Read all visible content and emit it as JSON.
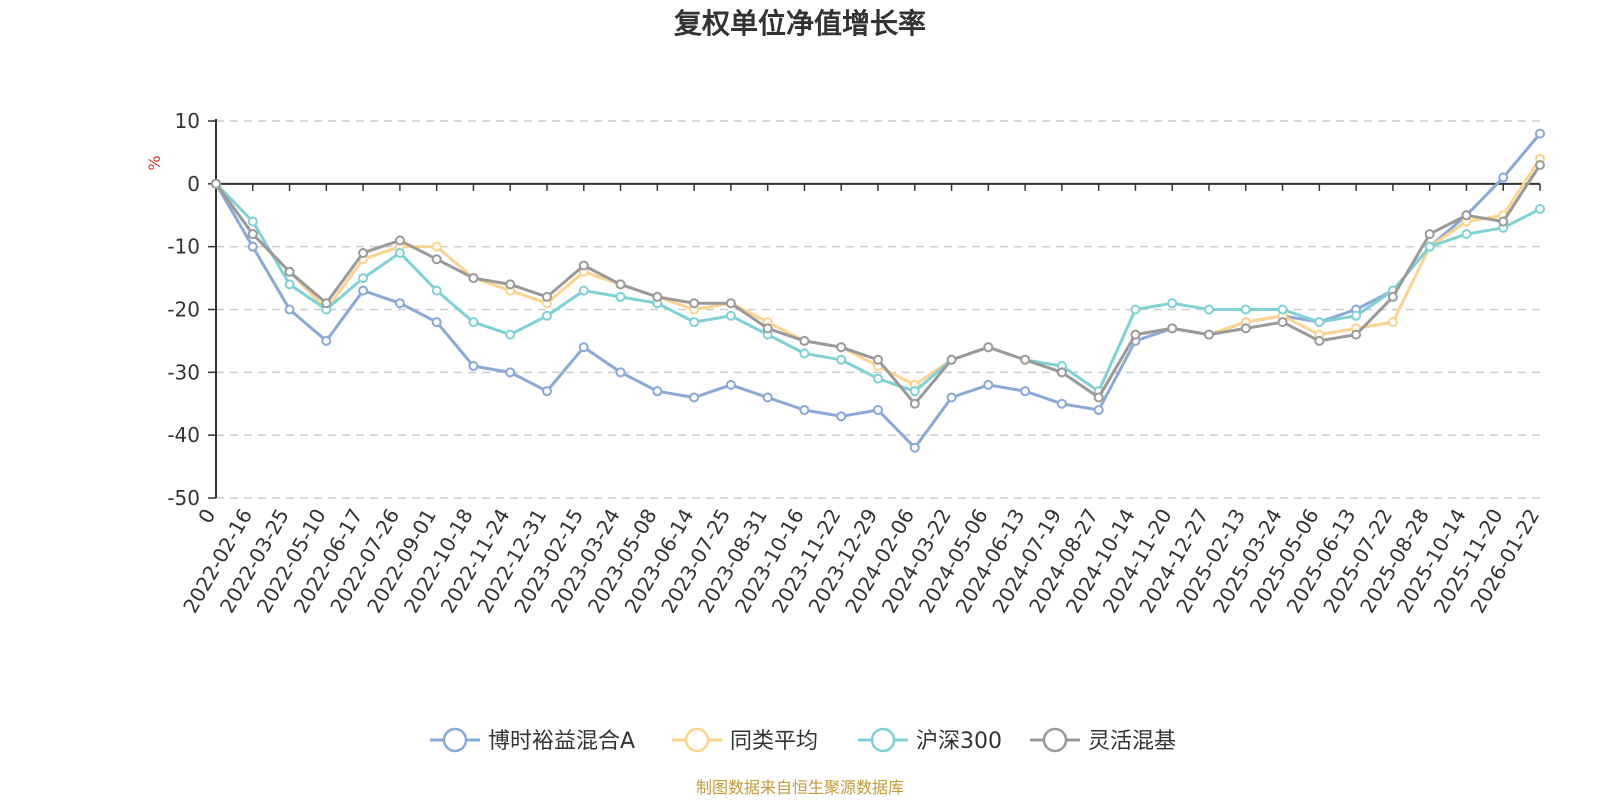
{
  "chart_data": {
    "type": "line",
    "title": "复权单位净值增长率",
    "ylabel": "%",
    "ylim": [
      -50,
      10
    ],
    "yticks": [
      10,
      0,
      -10,
      -20,
      -30,
      -40,
      -50
    ],
    "grid": true,
    "legend_position": "bottom",
    "x_tick_labels": [
      "0",
      "2022-02-16",
      "2022-03-25",
      "2022-05-10",
      "2022-06-17",
      "2022-07-26",
      "2022-09-01",
      "2022-10-18",
      "2022-11-24",
      "2022-12-31",
      "2023-02-15",
      "2023-03-24",
      "2023-05-08",
      "2023-06-14",
      "2023-07-25",
      "2023-08-31",
      "2023-10-16",
      "2023-11-22",
      "2023-12-29",
      "2024-02-06",
      "2024-03-22",
      "2024-05-06",
      "2024-06-13",
      "2024-07-19",
      "2024-08-27",
      "2024-10-14",
      "2024-11-20",
      "2024-12-27",
      "2025-02-13",
      "2025-03-24",
      "2025-05-06",
      "2025-06-13",
      "2025-07-22",
      "2025-08-28",
      "2025-10-14",
      "2025-11-20",
      "2026-01-22"
    ],
    "series": [
      {
        "name": "博时裕益混合A",
        "color": "#8aa8d8",
        "values": [
          0,
          -10,
          -20,
          -25,
          -17,
          -19,
          -22,
          -29,
          -30,
          -33,
          -26,
          -30,
          -33,
          -34,
          -32,
          -34,
          -36,
          -37,
          -36,
          -42,
          -34,
          -32,
          -33,
          -35,
          -36,
          -25,
          -23,
          -24,
          -22,
          -21,
          -22,
          -20,
          -17,
          -10,
          -5,
          1,
          8
        ]
      },
      {
        "name": "同类平均",
        "color": "#fcd38f",
        "values": [
          0,
          -8,
          -14,
          -20,
          -12,
          -10,
          -10,
          -15,
          -17,
          -19,
          -14,
          -16,
          -18,
          -20,
          -19,
          -22,
          -25,
          -26,
          -29,
          -32,
          -28,
          -26,
          -28,
          -30,
          -34,
          -24,
          -23,
          -24,
          -22,
          -21,
          -24,
          -23,
          -22,
          -10,
          -6,
          -5,
          4
        ]
      },
      {
        "name": "沪深300",
        "color": "#7fd2d4",
        "values": [
          0,
          -6,
          -16,
          -20,
          -15,
          -11,
          -17,
          -22,
          -24,
          -21,
          -17,
          -18,
          -19,
          -22,
          -21,
          -24,
          -27,
          -28,
          -31,
          -33,
          -28,
          -26,
          -28,
          -29,
          -33,
          -20,
          -19,
          -20,
          -20,
          -20,
          -22,
          -21,
          -17,
          -10,
          -8,
          -7,
          -4
        ]
      },
      {
        "name": "灵活混基",
        "color": "#9a9a9a",
        "values": [
          0,
          -8,
          -14,
          -19,
          -11,
          -9,
          -12,
          -15,
          -16,
          -18,
          -13,
          -16,
          -18,
          -19,
          -19,
          -23,
          -25,
          -26,
          -28,
          -35,
          -28,
          -26,
          -28,
          -30,
          -34,
          -24,
          -23,
          -24,
          -23,
          -22,
          -25,
          -24,
          -18,
          -8,
          -5,
          -6,
          3
        ]
      }
    ]
  },
  "footer": "制图数据来自恒生聚源数据库"
}
